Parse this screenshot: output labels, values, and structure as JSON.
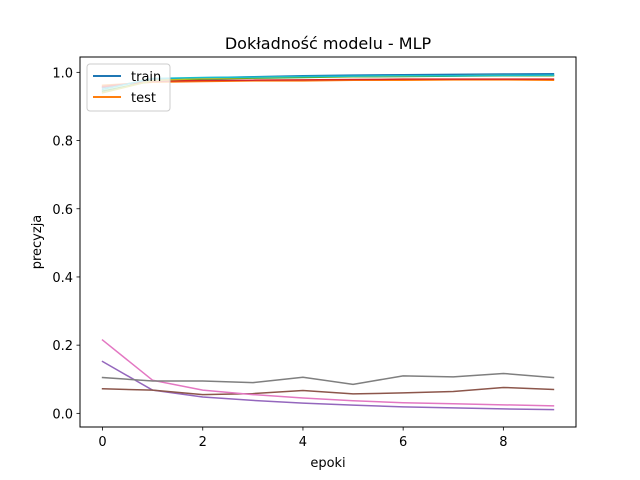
{
  "chart_data": {
    "type": "line",
    "title": "Dokładność modelu - MLP",
    "xlabel": "epoki",
    "ylabel": "precyzja",
    "xlim": [
      -0.45,
      9.45
    ],
    "ylim": [
      -0.04,
      1.045
    ],
    "xticks": [
      0,
      2,
      4,
      6,
      8
    ],
    "yticks": [
      0.0,
      0.2,
      0.4,
      0.6,
      0.8,
      1.0
    ],
    "grid": false,
    "legend": "top-left",
    "x": [
      0,
      1,
      2,
      3,
      4,
      5,
      6,
      7,
      8,
      9
    ],
    "legend_entries": [
      {
        "label": "train",
        "color": "#1f77b4"
      },
      {
        "label": "test",
        "color": "#ff7f0e"
      }
    ],
    "series": [
      {
        "color": "#1f77b4",
        "values": [
          0.955,
          0.978,
          0.984,
          0.987,
          0.99,
          0.992,
          0.993,
          0.994,
          0.995,
          0.996
        ]
      },
      {
        "color": "#ff7f0e",
        "values": [
          0.962,
          0.971,
          0.973,
          0.975,
          0.975,
          0.977,
          0.977,
          0.978,
          0.978,
          0.977
        ]
      },
      {
        "color": "#2ca02c",
        "values": [
          0.945,
          0.975,
          0.98,
          0.983,
          0.985,
          0.987,
          0.988,
          0.989,
          0.99,
          0.99
        ]
      },
      {
        "color": "#d62728",
        "values": [
          0.958,
          0.974,
          0.976,
          0.977,
          0.978,
          0.979,
          0.98,
          0.98,
          0.98,
          0.98
        ]
      },
      {
        "color": "#bcbd22",
        "values": [
          0.94,
          0.976,
          0.982,
          0.985,
          0.987,
          0.988,
          0.989,
          0.99,
          0.991,
          0.991
        ]
      },
      {
        "color": "#17becf",
        "values": [
          0.95,
          0.982,
          0.985,
          0.986,
          0.988,
          0.989,
          0.99,
          0.99,
          0.991,
          0.992
        ]
      },
      {
        "color": "#9467bd",
        "values": [
          0.152,
          0.068,
          0.048,
          0.038,
          0.03,
          0.024,
          0.019,
          0.016,
          0.013,
          0.011
        ]
      },
      {
        "color": "#8c564b",
        "values": [
          0.072,
          0.068,
          0.055,
          0.058,
          0.067,
          0.057,
          0.06,
          0.064,
          0.076,
          0.07
        ]
      },
      {
        "color": "#e377c2",
        "values": [
          0.215,
          0.097,
          0.068,
          0.055,
          0.045,
          0.037,
          0.031,
          0.028,
          0.025,
          0.022
        ]
      },
      {
        "color": "#7f7f7f",
        "values": [
          0.105,
          0.095,
          0.095,
          0.09,
          0.106,
          0.085,
          0.11,
          0.107,
          0.117,
          0.105
        ]
      }
    ]
  }
}
